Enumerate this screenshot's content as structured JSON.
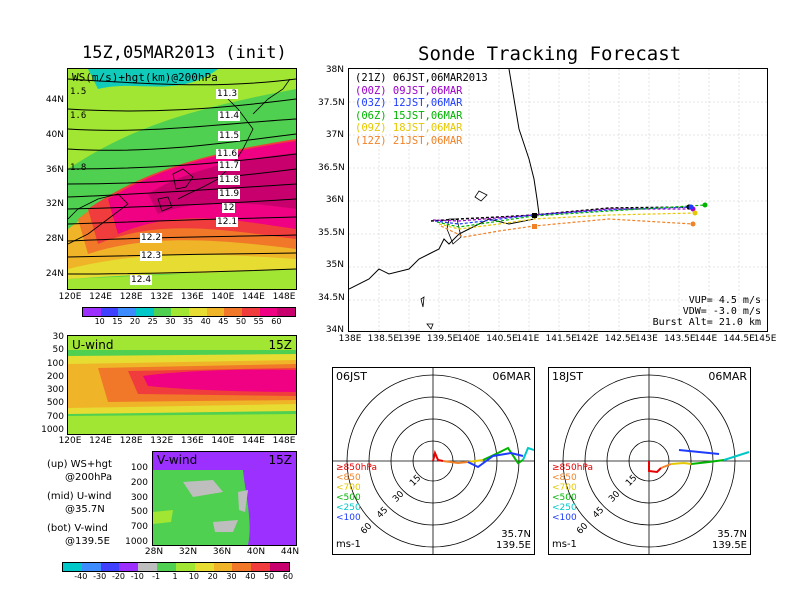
{
  "left_title": "15Z,05MAR2013 (init)",
  "right_title": "Sonde Tracking Forecast",
  "top_map": {
    "label": "WS(m/s)+hgt(km)@200hPa",
    "x_ticks": [
      "120E",
      "124E",
      "128E",
      "132E",
      "136E",
      "140E",
      "144E",
      "148E"
    ],
    "y_ticks": [
      "44N",
      "40N",
      "36N",
      "32N",
      "28N",
      "24N"
    ],
    "contour_labels": [
      "11.3",
      "11.4",
      "11.5",
      "11.6",
      "11.7",
      "11.8",
      "11.9",
      "12",
      "12.1",
      "12.2",
      "12.3",
      "12.4"
    ],
    "left_edge_labels": [
      "1.5",
      "1.6",
      "1.8"
    ]
  },
  "top_colorbar": {
    "labels": [
      "10",
      "15",
      "20",
      "25",
      "30",
      "35",
      "40",
      "45",
      "50",
      "55",
      "60"
    ],
    "colors": [
      "#9b30ff",
      "#4040ff",
      "#3c8cff",
      "#00c8c8",
      "#50d050",
      "#a0e632",
      "#e6dc32",
      "#f0b428",
      "#f07828",
      "#f03c3c",
      "#f00082",
      "#c8006e"
    ]
  },
  "u_wind": {
    "label": "U-wind",
    "time": "15Z",
    "y_ticks": [
      "30",
      "50",
      "100",
      "200",
      "300",
      "500",
      "700",
      "1000"
    ],
    "x_ticks": [
      "120E",
      "124E",
      "128E",
      "132E",
      "136E",
      "140E",
      "144E",
      "148E"
    ]
  },
  "legend_text": {
    "up_1": "(up) WS+hgt",
    "up_2": "@200hPa",
    "mid_1": "(mid) U-wind",
    "mid_2": "@35.7N",
    "bot_1": "(bot) V-wind",
    "bot_2": "@139.5E"
  },
  "v_wind": {
    "label": "V-wind",
    "time": "15Z",
    "y_ticks": [
      "100",
      "200",
      "300",
      "500",
      "700",
      "1000"
    ],
    "x_ticks": [
      "28N",
      "32N",
      "36N",
      "40N",
      "44N"
    ]
  },
  "bottom_colorbar": {
    "labels": [
      "-40",
      "-30",
      "-20",
      "-10",
      "-1",
      "1",
      "10",
      "20",
      "30",
      "40",
      "50",
      "60"
    ],
    "colors": [
      "#00c8c8",
      "#3c8cff",
      "#4040ff",
      "#9b30ff",
      "#bebebe",
      "#50d050",
      "#a0e632",
      "#e6dc32",
      "#f0b428",
      "#f07828",
      "#f03c3c",
      "#c8006e"
    ]
  },
  "track_map": {
    "y_ticks": [
      "38N",
      "37.5N",
      "37N",
      "36.5N",
      "36N",
      "35.5N",
      "35N",
      "34.5N",
      "34N"
    ],
    "x_ticks": [
      "138E",
      "138.5E",
      "139E",
      "139.5E",
      "140E",
      "140.5E",
      "141E",
      "141.5E",
      "142E",
      "142.5E",
      "143E",
      "143.5E",
      "144E",
      "144.5E",
      "145E"
    ],
    "legend": [
      {
        "text": "(21Z) 06JST,06MAR2013",
        "color": "#000000"
      },
      {
        "text": "(00Z) 09JST,06MAR",
        "color": "#9b00c8"
      },
      {
        "text": "(03Z) 12JST,06MAR",
        "color": "#1e3cff"
      },
      {
        "text": "(06Z) 15JST,06MAR",
        "color": "#00b400"
      },
      {
        "text": "(09Z) 18JST,06MAR",
        "color": "#e6c800"
      },
      {
        "text": "(12Z) 21JST,06MAR",
        "color": "#f08228"
      }
    ],
    "vup": "VUP= 4.5 m/s",
    "vdw": "VDW= -3.0 m/s",
    "burst": "Burst Alt= 21.0 km"
  },
  "hodo_left": {
    "time": "06JST",
    "date": "06MAR",
    "levels": [
      {
        "text": "≥850hPa",
        "color": "#e60000"
      },
      {
        "text": "<850",
        "color": "#f08228"
      },
      {
        "text": "<700",
        "color": "#e6c800"
      },
      {
        "text": "<500",
        "color": "#00b400"
      },
      {
        "text": "<250",
        "color": "#00c8c8"
      },
      {
        "text": "<100",
        "color": "#1e3cff"
      }
    ],
    "ring_labels": [
      "15",
      "30",
      "45",
      "60"
    ],
    "unit": "ms-1",
    "lat": "35.7N",
    "lon": "139.5E"
  },
  "hodo_right": {
    "time": "18JST",
    "date": "06MAR",
    "unit": "ms-1",
    "lat": "35.7N",
    "lon": "139.5E"
  }
}
